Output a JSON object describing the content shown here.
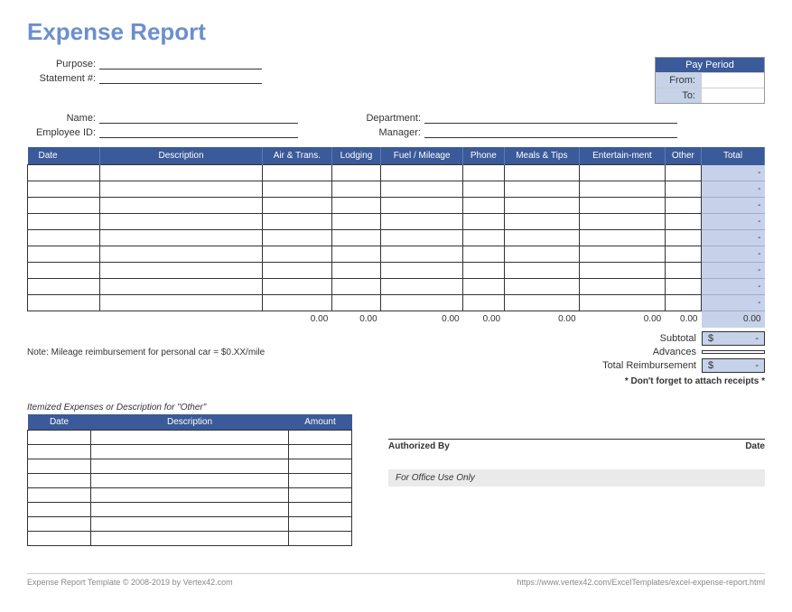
{
  "title": "Expense Report",
  "header_fields": {
    "purpose_label": "Purpose:",
    "statement_label": "Statement #:",
    "name_label": "Name:",
    "employee_id_label": "Employee ID:",
    "department_label": "Department:",
    "manager_label": "Manager:"
  },
  "pay_period": {
    "header": "Pay Period",
    "from_label": "From:",
    "to_label": "To:"
  },
  "main_table": {
    "columns": [
      "Date",
      "Description",
      "Air & Trans.",
      "Lodging",
      "Fuel / Mileage",
      "Phone",
      "Meals & Tips",
      "Entertain-ment",
      "Other",
      "Total"
    ],
    "row_count": 9,
    "total_placeholder": "-",
    "sums": [
      "0.00",
      "0.00",
      "0.00",
      "0.00",
      "0.00",
      "0.00",
      "0.00",
      "0.00"
    ]
  },
  "note": "Note: Mileage reimbursement for personal car = $0.XX/mile",
  "summary": {
    "subtotal_label": "Subtotal",
    "advances_label": "Advances",
    "total_reimbursement_label": "Total Reimbursement",
    "currency": "$",
    "dash": "-"
  },
  "receipts_note": "* Don't forget to attach receipts *",
  "itemized": {
    "title": "Itemized Expenses or Description for \"Other\"",
    "columns": [
      "Date",
      "Description",
      "Amount"
    ],
    "row_count": 8
  },
  "auth": {
    "authorized_by": "Authorized By",
    "date": "Date",
    "office_use": "For Office Use Only"
  },
  "footer": {
    "left": "Expense Report Template © 2008-2019 by Vertex42.com",
    "right": "https://www.vertex42.com/ExcelTemplates/excel-expense-report.html"
  },
  "colors": {
    "title": "#6b8fce",
    "header_bg": "#3a5a99",
    "light_bg": "#c5d2ea"
  }
}
